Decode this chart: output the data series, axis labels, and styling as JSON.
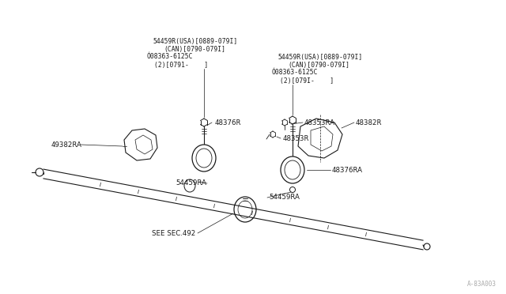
{
  "bg_color": "#ffffff",
  "line_color": "#1a1a1a",
  "fig_width": 6.4,
  "fig_height": 3.72,
  "watermark": "A-83A003",
  "labels": {
    "tl_l1": "54459R(USA)[0889-079I]",
    "tl_l2": "(CAN)[0790-079I]",
    "tl_l3": "Ó08363-6125C",
    "tl_l4": "(2)[0791-    ]",
    "tr_l1": "54459R(USA)[0889-079I]",
    "tr_l2": "(CAN)[0790-079I]",
    "tr_l3": "Ó08363-6125C",
    "tr_l4": "(2)[079I-    ]",
    "l_49382RA": "49382RA",
    "l_48376R": "48376R",
    "l_48353RA": "48353RA",
    "l_48353R": "48353R",
    "l_48382R": "48382R",
    "l_48376RA": "48376RA",
    "l_54459RA_a": "54459RA",
    "l_54459RA_b": "54459RA",
    "l_see_sec": "SEE SEC.492"
  }
}
